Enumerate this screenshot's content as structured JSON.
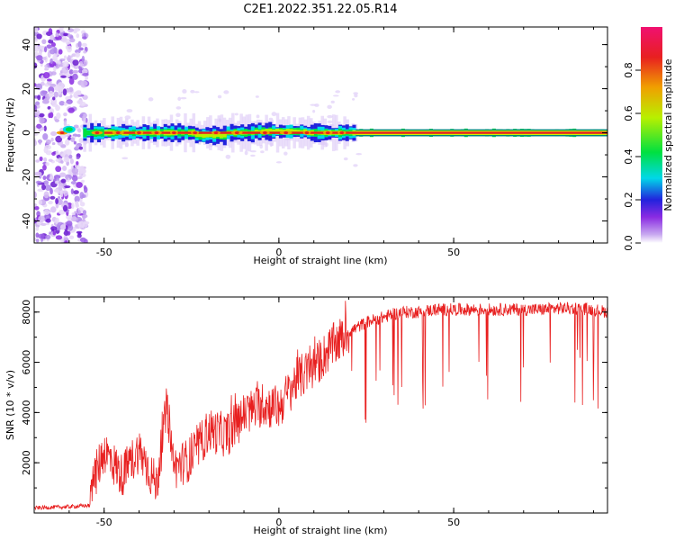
{
  "title": "C2E1.2022.351.22.05.R14",
  "chart_data": [
    {
      "type": "heatmap",
      "xlabel": "Height of straight line (km)",
      "ylabel": "Frequency (Hz)",
      "xlim": [
        -70,
        94
      ],
      "ylim": [
        -50,
        48
      ],
      "xticks": [
        -50,
        0,
        50
      ],
      "yticks": [
        -40,
        -20,
        0,
        20,
        40
      ],
      "colorbar": {
        "label": "Normalized spectral amplitude",
        "range": [
          0,
          1
        ],
        "ticks": [
          0.0,
          0.2,
          0.4,
          0.6,
          0.8
        ],
        "colors": [
          "#ffffff",
          "#c8a8f0",
          "#8a2be2",
          "#2222dd",
          "#00d8e8",
          "#00e040",
          "#b8f000",
          "#f0a000",
          "#e82020",
          "#f01070"
        ]
      },
      "features": {
        "central_band_hz": 0,
        "noisy_region_x": [
          -70,
          -55
        ]
      }
    },
    {
      "type": "line",
      "xlabel": "Height of straight line (km)",
      "ylabel": "SNR (10 * v/v)",
      "xlim": [
        -70,
        94
      ],
      "ylim": [
        0,
        8600
      ],
      "xticks": [
        -50,
        0,
        50
      ],
      "yticks": [
        2000,
        4000,
        6000,
        8000
      ],
      "line_color": "#e82020",
      "series": [
        {
          "x": [
            -70,
            -60,
            -54,
            -53,
            -50,
            -45,
            -40,
            -35,
            -32,
            -30,
            -25,
            -20,
            -15,
            -10,
            -5,
            0,
            5,
            10,
            15,
            20,
            25,
            30,
            35,
            40,
            45,
            50,
            55,
            60,
            65,
            70,
            75,
            80,
            85,
            90,
            94
          ],
          "y": [
            200,
            250,
            300,
            1300,
            2500,
            1500,
            2500,
            1100,
            4300,
            1800,
            2200,
            3300,
            3100,
            3900,
            4300,
            4200,
            5300,
            5800,
            6600,
            7200,
            7600,
            7800,
            8000,
            8000,
            8100,
            8100,
            8100,
            8100,
            8100,
            8100,
            8100,
            8150,
            8150,
            8100,
            8000
          ]
        }
      ]
    }
  ]
}
